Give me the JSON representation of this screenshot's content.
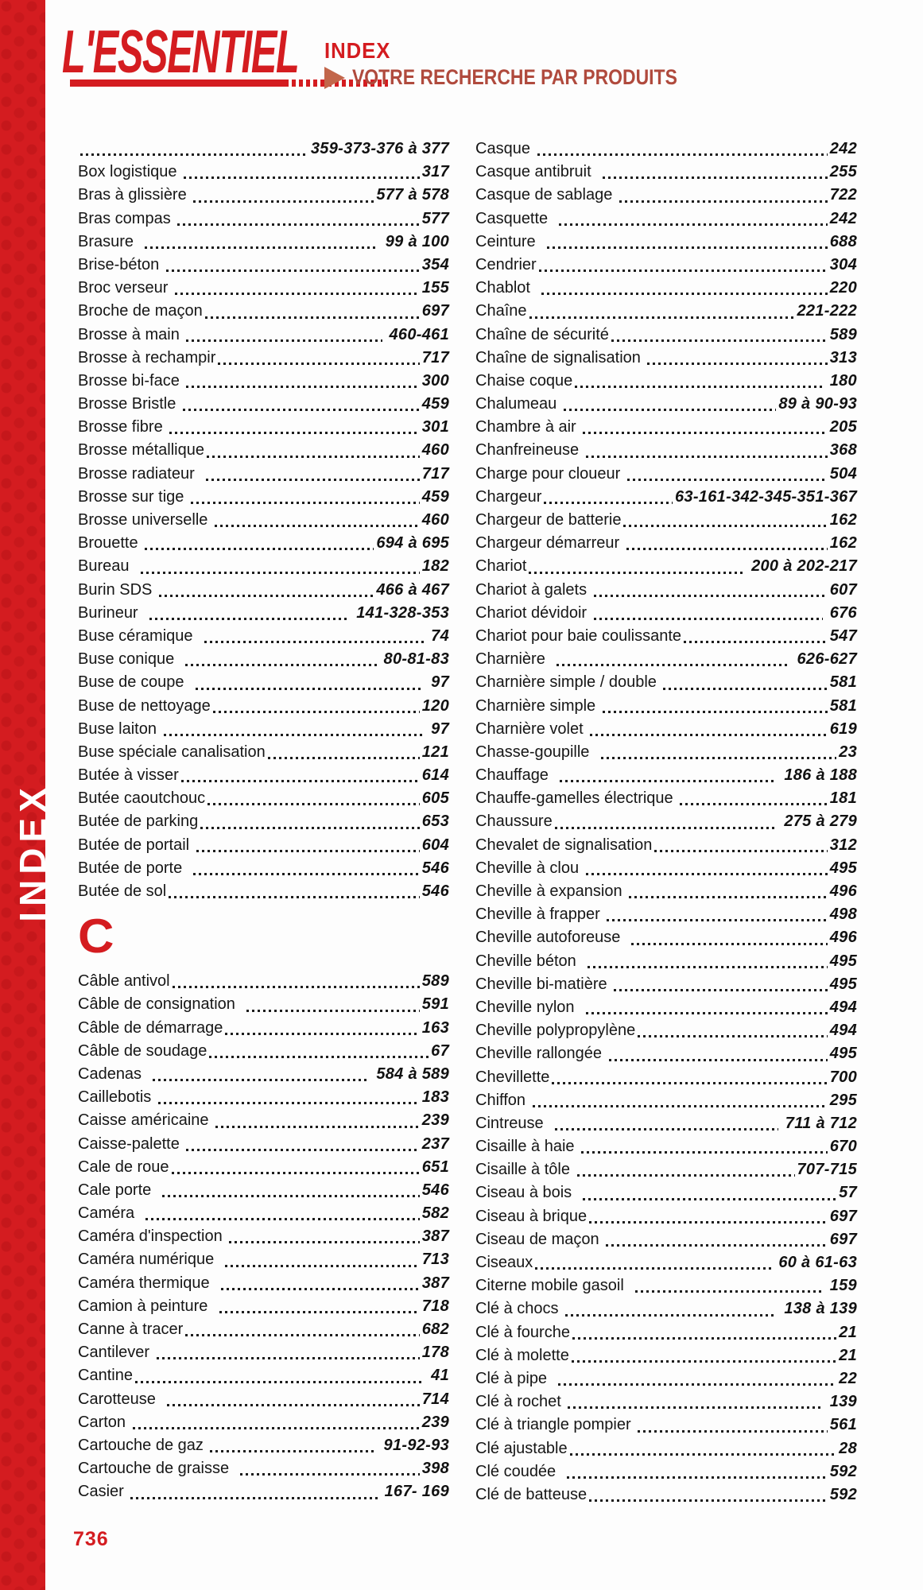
{
  "header": {
    "brand": "L'ESSENTIEL",
    "index_label": "INDEX",
    "subtitle": "VOTRE RECHERCHE PAR PRODUITS"
  },
  "sidebar": {
    "vertical_label": "INDEX"
  },
  "footer": {
    "page_number": "736"
  },
  "colors": {
    "brand_red": "#d41c20",
    "subtitle_red": "#b04a3d",
    "arrow_orange": "#c2664a",
    "text_black": "#1a1a1a"
  },
  "index": {
    "section_letter": "C",
    "left_b": [
      {
        "label": "",
        "pages": "359-373-376 à 377"
      },
      {
        "label": "Box logistique ",
        "pages": "317"
      },
      {
        "label": "Bras à glissière ",
        "pages": "577 à 578"
      },
      {
        "label": "Bras compas ",
        "pages": "577"
      },
      {
        "label": "Brasure  ",
        "pages": " 99 à 100"
      },
      {
        "label": "Brise-béton ",
        "pages": "354"
      },
      {
        "label": "Broc verseur ",
        "pages": "155"
      },
      {
        "label": "Broche de maçon",
        "pages": "697"
      },
      {
        "label": "Brosse à main ",
        "pages": " 460-461"
      },
      {
        "label": "Brosse à rechampir",
        "pages": "717"
      },
      {
        "label": "Brosse bi-face ",
        "pages": "300"
      },
      {
        "label": "Brosse Bristle ",
        "pages": "459"
      },
      {
        "label": "Brosse fibre ",
        "pages": "301"
      },
      {
        "label": "Brosse métallique",
        "pages": "460"
      },
      {
        "label": "Brosse radiateur  ",
        "pages": "717"
      },
      {
        "label": "Brosse sur tige ",
        "pages": "459"
      },
      {
        "label": "Brosse universelle ",
        "pages": "460"
      },
      {
        "label": "Brouette ",
        "pages": "694 à 695"
      },
      {
        "label": "Bureau  ",
        "pages": "182"
      },
      {
        "label": "Burin SDS ",
        "pages": "466 à 467"
      },
      {
        "label": "Burineur  ",
        "pages": " 141-328-353"
      },
      {
        "label": "Buse céramique  ",
        "pages": " 74"
      },
      {
        "label": "Buse conique  ",
        "pages": " 80-81-83"
      },
      {
        "label": "Buse de coupe  ",
        "pages": " 97"
      },
      {
        "label": "Buse de nettoyage",
        "pages": "120"
      },
      {
        "label": "Buse laiton ",
        "pages": " 97"
      },
      {
        "label": "Buse spéciale canalisation",
        "pages": "121"
      },
      {
        "label": "Butée à visser",
        "pages": "614"
      },
      {
        "label": "Butée caoutchouc",
        "pages": "605"
      },
      {
        "label": "Butée de parking",
        "pages": "653"
      },
      {
        "label": "Butée de portail ",
        "pages": "604"
      },
      {
        "label": "Butée de porte  ",
        "pages": "546"
      },
      {
        "label": "Butée de sol",
        "pages": "546"
      }
    ],
    "left_c": [
      {
        "label": "Câble antivol",
        "pages": "589"
      },
      {
        "label": "Câble de consignation  ",
        "pages": "591"
      },
      {
        "label": "Câble de démarrage",
        "pages": "163"
      },
      {
        "label": "Câble de soudage",
        "pages": "67"
      },
      {
        "label": "Cadenas  ",
        "pages": " 584 à 589"
      },
      {
        "label": "Caillebotis ",
        "pages": "183"
      },
      {
        "label": "Caisse américaine ",
        "pages": "239"
      },
      {
        "label": "Caisse-palette ",
        "pages": "237"
      },
      {
        "label": "Cale de roue",
        "pages": "651"
      },
      {
        "label": "Cale porte  ",
        "pages": "546"
      },
      {
        "label": "Caméra  ",
        "pages": "582"
      },
      {
        "label": "Caméra d'inspection ",
        "pages": "387"
      },
      {
        "label": "Caméra numérique  ",
        "pages": "713"
      },
      {
        "label": "Caméra thermique  ",
        "pages": "387"
      },
      {
        "label": "Camion à peinture  ",
        "pages": "718"
      },
      {
        "label": "Canne à tracer",
        "pages": "682"
      },
      {
        "label": "Cantilever ",
        "pages": "178"
      },
      {
        "label": "Cantine",
        "pages": " 41"
      },
      {
        "label": "Carotteuse  ",
        "pages": "714"
      },
      {
        "label": "Carton ",
        "pages": "239"
      },
      {
        "label": "Cartouche de gaz ",
        "pages": " 91-92-93"
      },
      {
        "label": "Cartouche de graisse  ",
        "pages": "398"
      },
      {
        "label": "Casier ",
        "pages": " 167- 169"
      }
    ],
    "right": [
      {
        "label": "Casque ",
        "pages": "242"
      },
      {
        "label": "Casque antibruit  ",
        "pages": "255"
      },
      {
        "label": "Casque de sablage ",
        "pages": "722"
      },
      {
        "label": "Casquette  ",
        "pages": "242"
      },
      {
        "label": "Ceinture  ",
        "pages": "688"
      },
      {
        "label": "Cendrier",
        "pages": "304"
      },
      {
        "label": "Chablot  ",
        "pages": "220"
      },
      {
        "label": "Chaîne",
        "pages": "221-222"
      },
      {
        "label": "Chaîne de sécurité",
        "pages": "589"
      },
      {
        "label": "Chaîne de signalisation ",
        "pages": "313"
      },
      {
        "label": "Chaise coque",
        "pages": " 180"
      },
      {
        "label": "Chalumeau ",
        "pages": "89 à 90-93"
      },
      {
        "label": "Chambre à air ",
        "pages": "205"
      },
      {
        "label": "Chanfreineuse ",
        "pages": "368"
      },
      {
        "label": "Charge pour cloueur ",
        "pages": "504"
      },
      {
        "label": "Chargeur",
        "pages": "63-161-342-345-351-367"
      },
      {
        "label": "Chargeur de batterie",
        "pages": "162"
      },
      {
        "label": "Chargeur démarreur ",
        "pages": "162"
      },
      {
        "label": "Chariot",
        "pages": " 200 à 202-217"
      },
      {
        "label": "Chariot à galets ",
        "pages": "607"
      },
      {
        "label": "Chariot dévidoir ",
        "pages": " 676"
      },
      {
        "label": "Chariot pour baie coulissante",
        "pages": "547"
      },
      {
        "label": "Charnière  ",
        "pages": " 626-627"
      },
      {
        "label": "Charnière simple / double ",
        "pages": "581"
      },
      {
        "label": "Charnière simple ",
        "pages": "581"
      },
      {
        "label": "Charnière volet ",
        "pages": "619"
      },
      {
        "label": "Chasse-goupille  ",
        "pages": "23"
      },
      {
        "label": "Chauffage  ",
        "pages": " 186 à 188"
      },
      {
        "label": "Chauffe-gamelles électrique ",
        "pages": "181"
      },
      {
        "label": "Chaussure",
        "pages": " 275 à 279"
      },
      {
        "label": "Chevalet de signalisation",
        "pages": "312"
      },
      {
        "label": "Cheville à clou ",
        "pages": "495"
      },
      {
        "label": "Cheville à expansion ",
        "pages": "496"
      },
      {
        "label": "Cheville à frapper ",
        "pages": "498"
      },
      {
        "label": "Cheville autoforeuse  ",
        "pages": "496"
      },
      {
        "label": "Cheville béton  ",
        "pages": "495"
      },
      {
        "label": "Cheville bi-matière ",
        "pages": "495"
      },
      {
        "label": "Cheville nylon  ",
        "pages": "494"
      },
      {
        "label": "Cheville polypropylène",
        "pages": "494"
      },
      {
        "label": "Cheville rallongée ",
        "pages": "495"
      },
      {
        "label": "Chevillette",
        "pages": "700"
      },
      {
        "label": "Chiffon ",
        "pages": "295"
      },
      {
        "label": "Cintreuse  ",
        "pages": " 711 à 712"
      },
      {
        "label": "Cisaille à haie ",
        "pages": "670"
      },
      {
        "label": "Cisaille à tôle ",
        "pages": "707-715"
      },
      {
        "label": "Ciseau à bois  ",
        "pages": "57"
      },
      {
        "label": "Ciseau à brique",
        "pages": "697"
      },
      {
        "label": "Ciseau de maçon ",
        "pages": "697"
      },
      {
        "label": "Ciseaux",
        "pages": " 60 à 61-63"
      },
      {
        "label": "Citerne mobile gasoil  ",
        "pages": " 159"
      },
      {
        "label": "Clé à chocs ",
        "pages": " 138 à 139"
      },
      {
        "label": "Clé à fourche",
        "pages": "21"
      },
      {
        "label": "Clé à molette",
        "pages": "21"
      },
      {
        "label": "Clé à pipe  ",
        "pages": "22"
      },
      {
        "label": "Clé à rochet ",
        "pages": " 139"
      },
      {
        "label": "Clé à triangle pompier ",
        "pages": "561"
      },
      {
        "label": "Clé ajustable",
        "pages": "28"
      },
      {
        "label": "Clé coudée  ",
        "pages": "592"
      },
      {
        "label": "Clé de batteuse",
        "pages": "592"
      }
    ]
  }
}
